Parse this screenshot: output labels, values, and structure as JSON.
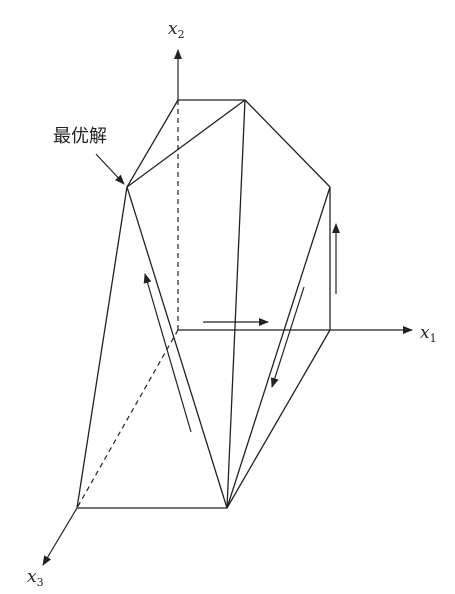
{
  "axes": {
    "x1": {
      "base": "x",
      "sub": "1"
    },
    "x2": {
      "base": "x",
      "sub": "2"
    },
    "x3": {
      "base": "x",
      "sub": "3"
    }
  },
  "annotation": {
    "label": "最优解"
  },
  "colors": {
    "line": "#222222",
    "background": "#ffffff"
  }
}
